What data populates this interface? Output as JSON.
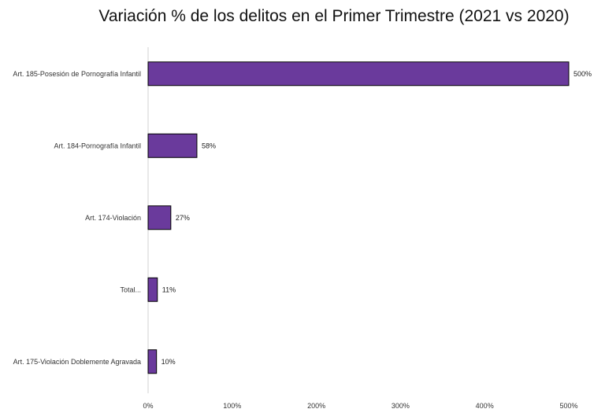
{
  "chart_data": {
    "type": "bar",
    "orientation": "horizontal",
    "title": "Variación % de los delitos en el Primer Trimestre (2021 vs 2020)",
    "categories": [
      "Art. 185-Posesión de Pornografía Infantil",
      "Art. 184-Pornografía Infantil",
      "Art. 174-Violación",
      "Total...",
      "Art. 175-Violación Doblemente Agravada"
    ],
    "values": [
      500,
      58,
      27,
      11,
      10
    ],
    "data_labels": [
      "500%",
      "58%",
      "27%",
      "11%",
      "10%"
    ],
    "x_ticks": [
      "0%",
      "100%",
      "200%",
      "300%",
      "400%",
      "500%"
    ],
    "xlim": [
      0,
      500
    ],
    "xlabel": "",
    "ylabel": "",
    "grid": false,
    "legend": "none",
    "bar_color": "#6a3a9c"
  }
}
